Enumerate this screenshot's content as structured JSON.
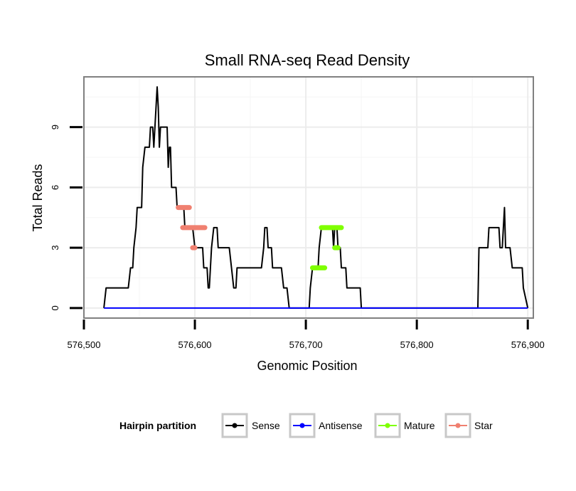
{
  "chart_data": {
    "type": "line",
    "title": "Small RNA-seq Read Density",
    "xlabel": "Genomic Position",
    "ylabel": "Total Reads",
    "xlim": [
      576500,
      576905
    ],
    "ylim": [
      -0.5,
      11.5
    ],
    "x_ticks": [
      576500,
      576600,
      576700,
      576800,
      576900
    ],
    "x_tick_labels": [
      "576,500",
      "576,600",
      "576,700",
      "576,800",
      "576,900"
    ],
    "y_ticks": [
      0,
      3,
      6,
      9
    ],
    "y_tick_labels": [
      "0",
      "3",
      "6",
      "9"
    ],
    "grid": true,
    "legend": {
      "title": "Hairpin partition",
      "position": "bottom",
      "entries": [
        {
          "name": "Sense",
          "color": "#000000"
        },
        {
          "name": "Antisense",
          "color": "#0000ff"
        },
        {
          "name": "Mature",
          "color": "#7fff00"
        },
        {
          "name": "Star",
          "color": "#f08070"
        }
      ]
    },
    "series": [
      {
        "name": "Sense",
        "color": "#000000",
        "style": "line",
        "points": [
          [
            576518,
            0
          ],
          [
            576520,
            1
          ],
          [
            576540,
            1
          ],
          [
            576542,
            2
          ],
          [
            576544,
            2
          ],
          [
            576545,
            3
          ],
          [
            576547,
            4
          ],
          [
            576548,
            5
          ],
          [
            576552,
            5
          ],
          [
            576553,
            7
          ],
          [
            576555,
            8
          ],
          [
            576559,
            8
          ],
          [
            576560,
            9
          ],
          [
            576562,
            9
          ],
          [
            576563,
            8
          ],
          [
            576564,
            9
          ],
          [
            576565,
            10
          ],
          [
            576566,
            11
          ],
          [
            576567,
            10
          ],
          [
            576568,
            8
          ],
          [
            576569,
            9
          ],
          [
            576575,
            9
          ],
          [
            576576,
            7
          ],
          [
            576577,
            8
          ],
          [
            576578,
            8
          ],
          [
            576579,
            6
          ],
          [
            576580,
            6
          ],
          [
            576582,
            6
          ],
          [
            576583,
            6
          ],
          [
            576584,
            5
          ],
          [
            576586,
            5
          ],
          [
            576588,
            5
          ],
          [
            576590,
            5
          ],
          [
            576591,
            4
          ],
          [
            576593,
            4
          ],
          [
            576596,
            4
          ],
          [
            576598,
            4
          ],
          [
            576600,
            3
          ],
          [
            576603,
            3
          ],
          [
            576605,
            3
          ],
          [
            576607,
            3
          ],
          [
            576608,
            2
          ],
          [
            576611,
            2
          ],
          [
            576612,
            1
          ],
          [
            576613,
            1
          ],
          [
            576614,
            2
          ],
          [
            576615,
            3
          ],
          [
            576617,
            4
          ],
          [
            576620,
            4
          ],
          [
            576621,
            3
          ],
          [
            576631,
            3
          ],
          [
            576633,
            2
          ],
          [
            576635,
            1
          ],
          [
            576637,
            1
          ],
          [
            576638,
            2
          ],
          [
            576646,
            2
          ],
          [
            576647,
            2
          ],
          [
            576660,
            2
          ],
          [
            576662,
            3
          ],
          [
            576663,
            4
          ],
          [
            576665,
            4
          ],
          [
            576666,
            3
          ],
          [
            576669,
            3
          ],
          [
            576670,
            2
          ],
          [
            576678,
            2
          ],
          [
            576680,
            1
          ],
          [
            576683,
            1
          ],
          [
            576685,
            0
          ],
          [
            576703,
            0
          ],
          [
            576704,
            1
          ],
          [
            576706,
            2
          ],
          [
            576711,
            2
          ],
          [
            576712,
            3
          ],
          [
            576714,
            4
          ],
          [
            576724,
            4
          ],
          [
            576725,
            3
          ],
          [
            576726,
            4
          ],
          [
            576728,
            4
          ],
          [
            576729,
            3
          ],
          [
            576731,
            3
          ],
          [
            576732,
            2
          ],
          [
            576736,
            2
          ],
          [
            576737,
            1
          ],
          [
            576749,
            1
          ],
          [
            576750,
            0
          ],
          [
            576755,
            0
          ],
          [
            576855,
            0
          ],
          [
            576856,
            3
          ],
          [
            576864,
            3
          ],
          [
            576865,
            4
          ],
          [
            576874,
            4
          ],
          [
            576875,
            3
          ],
          [
            576876,
            3
          ],
          [
            576877,
            3
          ],
          [
            576878,
            4
          ],
          [
            576879,
            5
          ],
          [
            576880,
            3
          ],
          [
            576883,
            3
          ],
          [
            576884,
            3
          ],
          [
            576886,
            2
          ],
          [
            576895,
            2
          ],
          [
            576896,
            1
          ],
          [
            576900,
            0
          ]
        ]
      },
      {
        "name": "Antisense",
        "color": "#0000ff",
        "style": "line",
        "points": [
          [
            576518,
            0
          ],
          [
            576900,
            0
          ]
        ]
      },
      {
        "name": "Mature",
        "color": "#7fff00",
        "style": "segments",
        "segments": [
          {
            "x": [
              576706,
              576717
            ],
            "y": 2
          },
          {
            "x": [
              576714,
              576732
            ],
            "y": 4
          },
          {
            "x": [
              576726,
              576729
            ],
            "y": 3
          }
        ]
      },
      {
        "name": "Star",
        "color": "#f08070",
        "style": "segments",
        "segments": [
          {
            "x": [
              576585,
              576595
            ],
            "y": 5
          },
          {
            "x": [
              576589,
              576609
            ],
            "y": 4
          },
          {
            "x": [
              576598,
              576600
            ],
            "y": 3
          }
        ]
      }
    ]
  }
}
